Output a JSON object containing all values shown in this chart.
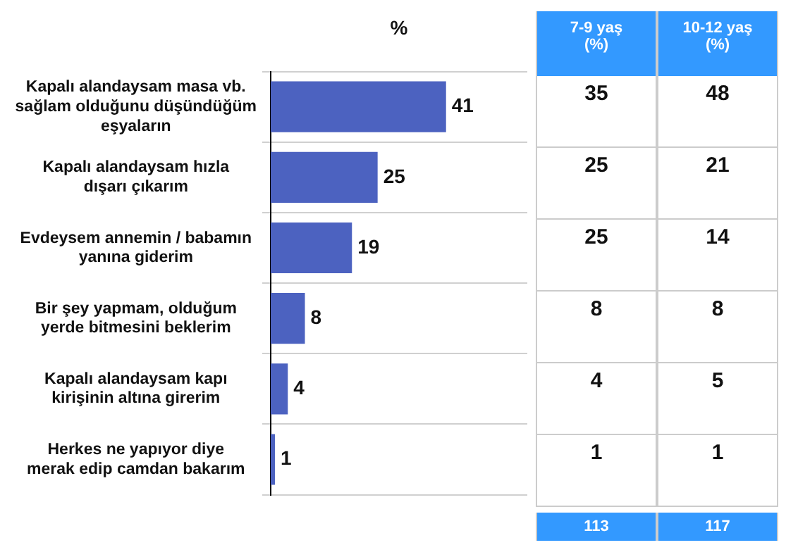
{
  "chart_data": [
    {
      "type": "bar",
      "orientation": "horizontal",
      "xlabel": "%",
      "categories": [
        "Kapalı alandaysam masa vb. sağlam olduğunu düşündüğüm eşyaların",
        "Kapalı alandaysam hızla dışarı çıkarım",
        "Evdeysem annemin / babamın yanına giderim",
        "Bir şey yapmam, olduğum yerde bitmesini beklerim",
        "Kapalı alandaysam kapı kirişinin altına girerim",
        "Herkes ne yapıyor diye merak edip camdan bakarım"
      ],
      "values": [
        41,
        25,
        19,
        8,
        4,
        1
      ],
      "color": "#4c62c0",
      "data_labels": true,
      "grid": "y",
      "tick_labels": "y"
    },
    {
      "type": "other",
      "categories": [
        "7-9 yaş (%)",
        "10-12 yaş (%)"
      ],
      "annotations": [
        "35",
        "48",
        "25",
        "21",
        "25",
        "14",
        "8",
        "8",
        "4",
        "5",
        "1",
        "1"
      ],
      "totals": [
        "113",
        "117"
      ]
    }
  ]
}
